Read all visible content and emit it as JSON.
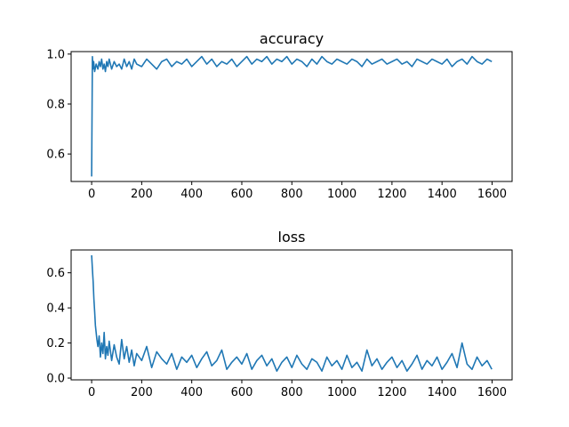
{
  "chart_data": [
    {
      "type": "line",
      "title": "accuracy",
      "xlabel": "",
      "ylabel": "",
      "xlim": [
        -82,
        1680
      ],
      "ylim": [
        0.49,
        1.01
      ],
      "xticks": [
        0,
        200,
        400,
        600,
        800,
        1000,
        1200,
        1400,
        1600
      ],
      "xtick_labels": [
        "0",
        "200",
        "400",
        "600",
        "800",
        "1000",
        "1200",
        "1400",
        "1600"
      ],
      "yticks": [
        0.6,
        0.8,
        1.0
      ],
      "ytick_labels": [
        "0.6",
        "0.8",
        "1.0"
      ],
      "grid": false,
      "series": [
        {
          "color": "#1f77b4",
          "x": [
            0,
            3,
            5,
            8,
            12,
            18,
            25,
            30,
            35,
            40,
            45,
            50,
            55,
            60,
            65,
            70,
            80,
            90,
            100,
            110,
            120,
            130,
            140,
            150,
            160,
            170,
            180,
            200,
            220,
            240,
            260,
            280,
            300,
            320,
            340,
            360,
            380,
            400,
            420,
            440,
            460,
            480,
            500,
            520,
            540,
            560,
            580,
            600,
            620,
            640,
            660,
            680,
            700,
            720,
            740,
            760,
            780,
            800,
            820,
            840,
            860,
            880,
            900,
            920,
            940,
            960,
            980,
            1000,
            1020,
            1040,
            1060,
            1080,
            1100,
            1120,
            1140,
            1160,
            1180,
            1200,
            1220,
            1240,
            1260,
            1280,
            1300,
            1320,
            1340,
            1360,
            1380,
            1400,
            1420,
            1440,
            1460,
            1480,
            1500,
            1520,
            1540,
            1560,
            1580,
            1599
          ],
          "values": [
            0.51,
            0.99,
            0.94,
            0.97,
            0.93,
            0.96,
            0.94,
            0.97,
            0.95,
            0.98,
            0.94,
            0.96,
            0.93,
            0.97,
            0.95,
            0.98,
            0.94,
            0.97,
            0.95,
            0.96,
            0.94,
            0.98,
            0.95,
            0.97,
            0.94,
            0.98,
            0.96,
            0.95,
            0.98,
            0.96,
            0.94,
            0.97,
            0.98,
            0.95,
            0.97,
            0.96,
            0.98,
            0.95,
            0.97,
            0.99,
            0.96,
            0.98,
            0.95,
            0.97,
            0.96,
            0.98,
            0.95,
            0.97,
            0.99,
            0.96,
            0.98,
            0.97,
            0.99,
            0.96,
            0.98,
            0.97,
            0.99,
            0.96,
            0.98,
            0.97,
            0.95,
            0.98,
            0.96,
            0.99,
            0.97,
            0.96,
            0.98,
            0.97,
            0.96,
            0.98,
            0.97,
            0.95,
            0.98,
            0.96,
            0.97,
            0.98,
            0.96,
            0.97,
            0.98,
            0.96,
            0.97,
            0.95,
            0.98,
            0.97,
            0.96,
            0.98,
            0.97,
            0.96,
            0.98,
            0.95,
            0.97,
            0.98,
            0.96,
            0.99,
            0.97,
            0.96,
            0.98,
            0.97
          ]
        }
      ]
    },
    {
      "type": "line",
      "title": "loss",
      "xlabel": "",
      "ylabel": "",
      "xlim": [
        -82,
        1680
      ],
      "ylim": [
        -0.01,
        0.73
      ],
      "xticks": [
        0,
        200,
        400,
        600,
        800,
        1000,
        1200,
        1400,
        1600
      ],
      "xtick_labels": [
        "0",
        "200",
        "400",
        "600",
        "800",
        "1000",
        "1200",
        "1400",
        "1600"
      ],
      "yticks": [
        0.0,
        0.2,
        0.4,
        0.6
      ],
      "ytick_labels": [
        "0.0",
        "0.2",
        "0.4",
        "0.6"
      ],
      "grid": false,
      "series": [
        {
          "color": "#1f77b4",
          "x": [
            0,
            3,
            6,
            9,
            12,
            15,
            18,
            21,
            25,
            30,
            35,
            40,
            45,
            50,
            55,
            60,
            65,
            70,
            80,
            90,
            100,
            110,
            120,
            130,
            140,
            150,
            160,
            170,
            180,
            200,
            220,
            240,
            260,
            280,
            300,
            320,
            340,
            360,
            380,
            400,
            420,
            440,
            460,
            480,
            500,
            520,
            540,
            560,
            580,
            600,
            620,
            640,
            660,
            680,
            700,
            720,
            740,
            760,
            780,
            800,
            820,
            840,
            860,
            880,
            900,
            920,
            940,
            960,
            980,
            1000,
            1020,
            1040,
            1060,
            1080,
            1100,
            1120,
            1140,
            1160,
            1180,
            1200,
            1220,
            1240,
            1260,
            1280,
            1300,
            1320,
            1340,
            1360,
            1380,
            1400,
            1420,
            1440,
            1460,
            1480,
            1500,
            1520,
            1540,
            1560,
            1580,
            1599
          ],
          "values": [
            0.7,
            0.62,
            0.55,
            0.45,
            0.38,
            0.3,
            0.26,
            0.22,
            0.18,
            0.24,
            0.12,
            0.2,
            0.14,
            0.26,
            0.11,
            0.18,
            0.13,
            0.21,
            0.1,
            0.19,
            0.12,
            0.08,
            0.22,
            0.11,
            0.18,
            0.09,
            0.16,
            0.07,
            0.14,
            0.1,
            0.18,
            0.06,
            0.15,
            0.11,
            0.08,
            0.14,
            0.05,
            0.12,
            0.09,
            0.13,
            0.06,
            0.11,
            0.15,
            0.07,
            0.1,
            0.16,
            0.05,
            0.09,
            0.12,
            0.08,
            0.14,
            0.05,
            0.1,
            0.13,
            0.07,
            0.11,
            0.04,
            0.09,
            0.12,
            0.06,
            0.13,
            0.08,
            0.05,
            0.11,
            0.09,
            0.04,
            0.12,
            0.07,
            0.1,
            0.05,
            0.13,
            0.06,
            0.09,
            0.04,
            0.16,
            0.07,
            0.11,
            0.05,
            0.09,
            0.12,
            0.06,
            0.1,
            0.04,
            0.08,
            0.13,
            0.05,
            0.1,
            0.07,
            0.12,
            0.05,
            0.09,
            0.14,
            0.06,
            0.2,
            0.08,
            0.05,
            0.12,
            0.07,
            0.1,
            0.05
          ]
        }
      ]
    }
  ]
}
